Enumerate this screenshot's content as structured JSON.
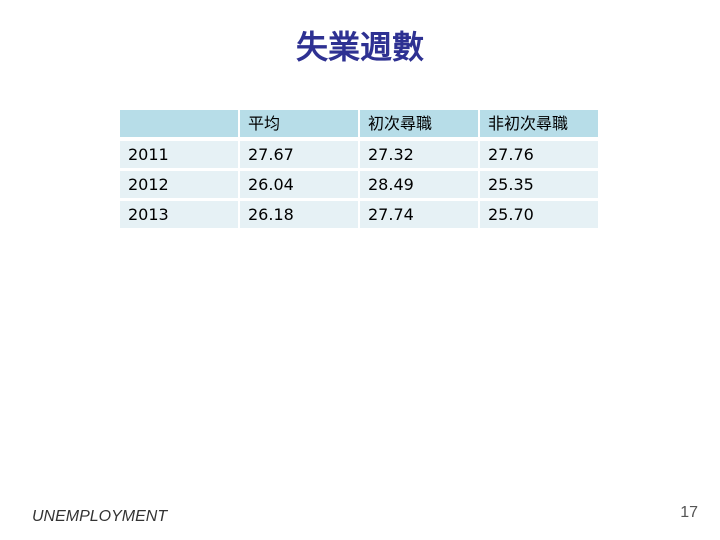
{
  "title": "失業週數",
  "table": {
    "header": [
      "平均",
      "初次尋職",
      "非初次尋職"
    ],
    "rows": [
      [
        "2011",
        "27.67",
        "27.32",
        "27.76"
      ],
      [
        "2012",
        "26.04",
        "28.49",
        "25.35"
      ],
      [
        "2013",
        "26.18",
        "27.74",
        "25.70"
      ]
    ]
  },
  "footer": {
    "label": "UNEMPLOYMENT",
    "page_number": "17"
  }
}
